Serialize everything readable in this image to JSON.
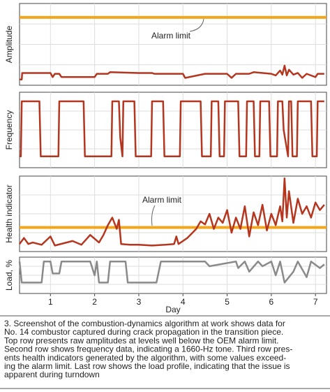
{
  "chart_data": [
    {
      "type": "line",
      "ylabel": "Amplitude",
      "ylim": [
        0,
        100
      ],
      "color": "#b5361f",
      "alarm_limit": {
        "value": 83,
        "label": "Alarm limit",
        "color": "#f3a51b"
      },
      "xlim": [
        0.3,
        7.25
      ],
      "x": [
        0.3,
        0.35,
        0.36,
        1.0,
        1.05,
        1.1,
        1.2,
        1.25,
        2.0,
        2.05,
        2.3,
        2.35,
        3.0,
        3.3,
        3.35,
        4.0,
        4.05,
        4.5,
        5.0,
        5.1,
        5.2,
        5.5,
        5.6,
        6.0,
        6.1,
        6.2,
        6.25,
        6.3,
        6.35,
        6.4,
        6.5,
        6.6,
        6.7,
        6.8,
        7.0,
        7.05,
        7.2
      ],
      "values": [
        7,
        7,
        15,
        15,
        10,
        14,
        14,
        10,
        10,
        14,
        14,
        16,
        15,
        15,
        14,
        14,
        9,
        14,
        14,
        9,
        14,
        14,
        16,
        14,
        12,
        18,
        13,
        24,
        12,
        19,
        13,
        15,
        9,
        14,
        10,
        14,
        14
      ]
    },
    {
      "type": "line",
      "ylabel": "Frequency",
      "ylim": [
        0,
        100
      ],
      "color": "#b5361f",
      "xlim": [
        0.3,
        7.25
      ],
      "x": [
        0.3,
        0.33,
        0.35,
        0.75,
        0.78,
        1.18,
        1.2,
        1.75,
        1.78,
        2.38,
        2.4,
        2.55,
        2.58,
        2.63,
        2.65,
        2.9,
        2.93,
        3.28,
        3.3,
        3.55,
        3.58,
        3.93,
        3.95,
        4.4,
        4.43,
        4.63,
        4.65,
        4.8,
        4.83,
        4.93,
        4.95,
        5.25,
        5.28,
        5.43,
        5.45,
        5.6,
        5.63,
        5.73,
        5.75,
        5.95,
        5.98,
        6.13,
        6.15,
        6.25,
        6.28,
        6.38,
        6.4,
        6.45,
        6.48,
        6.58,
        6.6,
        6.9,
        6.93,
        7.03,
        7.05,
        7.2
      ],
      "values": [
        15,
        15,
        88,
        88,
        15,
        15,
        88,
        88,
        15,
        15,
        88,
        88,
        40,
        15,
        88,
        88,
        15,
        15,
        88,
        88,
        15,
        15,
        88,
        88,
        15,
        15,
        88,
        88,
        15,
        15,
        88,
        88,
        15,
        15,
        88,
        88,
        15,
        15,
        88,
        88,
        15,
        15,
        88,
        88,
        50,
        15,
        88,
        88,
        15,
        15,
        88,
        88,
        15,
        15,
        88,
        88
      ]
    },
    {
      "type": "line",
      "ylabel": "Health indicator",
      "ylim": [
        0,
        100
      ],
      "color": "#b5361f",
      "alarm_limit": {
        "value": 32,
        "label": "Alarm limit",
        "color": "#f3a51b"
      },
      "xlim": [
        0.3,
        7.25
      ],
      "x": [
        0.3,
        0.4,
        0.5,
        0.6,
        0.8,
        1.0,
        1.1,
        1.3,
        1.5,
        1.7,
        1.9,
        2.1,
        2.2,
        2.3,
        2.4,
        2.5,
        2.55,
        2.6,
        2.8,
        3.0,
        3.3,
        3.6,
        3.8,
        3.85,
        3.9,
        4.0,
        4.1,
        4.2,
        4.3,
        4.4,
        4.5,
        4.6,
        4.7,
        4.8,
        4.9,
        5.0,
        5.1,
        5.2,
        5.3,
        5.4,
        5.5,
        5.6,
        5.7,
        5.8,
        5.9,
        6.0,
        6.1,
        6.2,
        6.25,
        6.3,
        6.35,
        6.4,
        6.5,
        6.6,
        6.7,
        6.8,
        6.9,
        7.0,
        7.1,
        7.2
      ],
      "values": [
        10,
        18,
        10,
        12,
        9,
        20,
        8,
        11,
        14,
        9,
        22,
        12,
        22,
        35,
        45,
        30,
        42,
        10,
        9,
        9,
        8,
        9,
        10,
        20,
        10,
        14,
        18,
        24,
        30,
        40,
        36,
        50,
        30,
        45,
        38,
        55,
        25,
        45,
        30,
        60,
        20,
        52,
        35,
        62,
        28,
        50,
        35,
        60,
        40,
        97,
        45,
        80,
        38,
        70,
        50,
        60,
        45,
        65,
        55,
        62
      ]
    },
    {
      "type": "line",
      "ylabel": "Load, %",
      "ylim": [
        0,
        100
      ],
      "color": "#8a8a8a",
      "xlim": [
        0.3,
        7.25
      ],
      "xlabel": "Day",
      "xticks": [
        1,
        2,
        3,
        4,
        5,
        6,
        7
      ],
      "x": [
        0.3,
        0.35,
        0.37,
        0.8,
        0.85,
        1.0,
        1.05,
        1.2,
        1.25,
        1.9,
        2.0,
        2.05,
        2.1,
        2.3,
        2.35,
        2.7,
        2.75,
        3.4,
        3.5,
        3.9,
        3.95,
        4.5,
        4.6,
        5.2,
        5.25,
        5.4,
        5.5,
        5.7,
        5.8,
        6.0,
        6.1,
        6.2,
        6.3,
        6.5,
        6.6,
        6.8,
        6.9,
        7.1,
        7.2
      ],
      "values": [
        88,
        30,
        30,
        30,
        88,
        88,
        55,
        55,
        88,
        88,
        50,
        88,
        30,
        30,
        88,
        88,
        30,
        30,
        88,
        88,
        88,
        88,
        75,
        88,
        70,
        88,
        60,
        88,
        75,
        88,
        50,
        88,
        30,
        60,
        88,
        45,
        88,
        70,
        80
      ]
    }
  ],
  "caption": [
    "3. Screenshot of the combustion-dynamics algorithm at work shows data for",
    "No. 14 combustor captured during crack propagation in the transition piece.",
    "Top row presents raw amplitudes at levels well below the OEM alarm limit.",
    "Second row shows frequency data, indicating a 1660-Hz tone. Third row pres-",
    "ents health indicators generated by the algorithm, with some values exceed-",
    "ing the alarm limit. Last row shows the load profile, indicating that the issue is",
    "apparent during turndown"
  ]
}
